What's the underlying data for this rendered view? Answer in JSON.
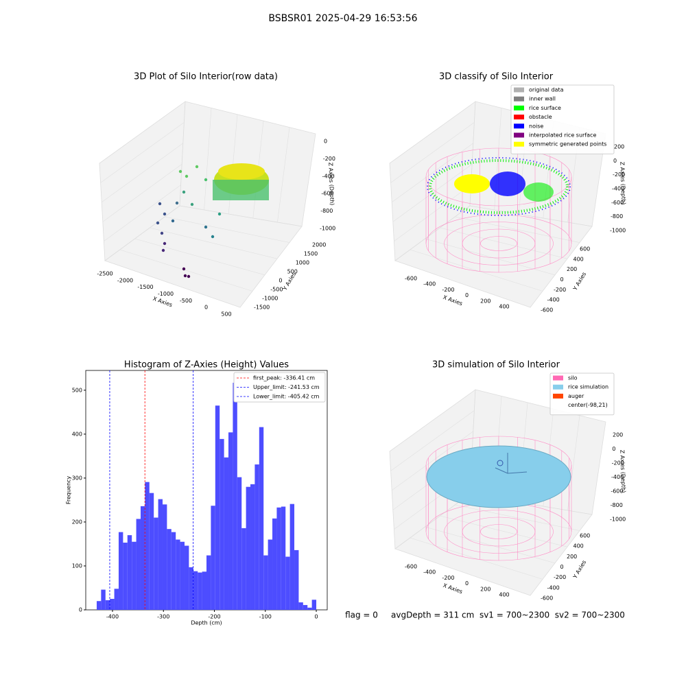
{
  "title": "BSBSR01 2025-04-29 16:53:56",
  "chart_data": [
    {
      "type": "scatter3d",
      "title": "3D Plot of Silo Interior(row data)",
      "xlabel": "X Axies",
      "ylabel": "Y Axies",
      "zlabel": "Z Axies (Depth)",
      "xticks": [
        -2500,
        -2000,
        -1500,
        -1000,
        -500,
        0,
        500
      ],
      "yticks": [
        -1500,
        -1000,
        -500,
        0,
        500,
        1000,
        1500,
        2000
      ],
      "zticks": [
        -1000,
        -800,
        -600,
        -400,
        -200,
        0
      ]
    },
    {
      "type": "classify3d",
      "title": "3D classify of Silo Interior",
      "xlabel": "X Axies",
      "ylabel": "Y Axies",
      "zlabel": "Z Axies (Depth)",
      "xticks": [
        -600,
        -400,
        -200,
        0,
        200,
        400
      ],
      "yticks": [
        -600,
        -400,
        -200,
        0,
        200,
        400,
        600
      ],
      "zticks": [
        -1000,
        -800,
        -600,
        -400,
        -200,
        0,
        200
      ],
      "legend": [
        {
          "name": "original data",
          "color": "#b0b0b0"
        },
        {
          "name": "inner wall",
          "color": "#808080"
        },
        {
          "name": "rice surface",
          "color": "#00ff00"
        },
        {
          "name": "obstacle",
          "color": "#ff0000"
        },
        {
          "name": "noise",
          "color": "#0000ff"
        },
        {
          "name": "interpolated rice surface",
          "color": "#800080"
        },
        {
          "name": "symmetric generated points",
          "color": "#ffff00"
        }
      ]
    },
    {
      "type": "histogram",
      "title": "Histogram of Z-Axies (Height) Values",
      "xlabel": "Depth (cm)",
      "ylabel": "Frequency",
      "color": "#4d4dff",
      "bins": [
        -431.0,
        -422.38,
        -413.76,
        -405.14,
        -396.52,
        -387.9,
        -379.28,
        -370.66,
        -362.04,
        -353.42,
        -344.8,
        -336.18,
        -327.56,
        -318.94,
        -310.32,
        -301.7,
        -293.08,
        -284.46,
        -275.84,
        -267.22,
        -258.6,
        -249.98,
        -241.36,
        -232.74,
        -224.12,
        -215.5,
        -206.88,
        -198.26,
        -189.64,
        -181.02,
        -172.4,
        -163.78,
        -155.16,
        -146.54,
        -137.92,
        -129.3,
        -120.68,
        -112.06,
        -103.44,
        -94.82,
        -86.2,
        -77.58,
        -68.96,
        -60.34,
        -51.72,
        -43.1,
        -34.48,
        -25.86,
        -17.24,
        -8.62,
        0
      ],
      "counts": [
        20,
        46,
        22,
        25,
        48,
        177,
        153,
        170,
        155,
        207,
        236,
        291,
        266,
        210,
        252,
        240,
        184,
        177,
        160,
        155,
        146,
        97,
        88,
        85,
        87,
        124,
        237,
        465,
        389,
        347,
        404,
        517,
        302,
        186,
        280,
        286,
        331,
        416,
        124,
        160,
        208,
        233,
        235,
        121,
        241,
        136,
        17,
        11,
        5,
        23
      ],
      "xlim": [
        -452.5,
        21.5
      ],
      "ylim": [
        0,
        545
      ],
      "xticks": [
        -400,
        -300,
        -200,
        -100,
        0
      ],
      "yticks": [
        0,
        100,
        200,
        300,
        400,
        500
      ],
      "lines": [
        {
          "label": "first_peak: -336.41 cm",
          "value": -336.41,
          "color": "#ff0000"
        },
        {
          "label": "Upper_limit: -241.53 cm",
          "value": -241.53,
          "color": "#0000ff"
        },
        {
          "label": "Lower_limit: -405.42 cm",
          "value": -405.42,
          "color": "#0000ff"
        }
      ]
    },
    {
      "type": "surface3d",
      "title": "3D simulation of Silo Interior",
      "xlabel": "X Axies",
      "ylabel": "Y Axies",
      "zlabel": "Z Axies (Depth)",
      "xticks": [
        -600,
        -400,
        -200,
        0,
        200,
        400
      ],
      "yticks": [
        -600,
        -400,
        -200,
        0,
        200,
        400,
        600
      ],
      "zticks": [
        -1000,
        -800,
        -600,
        -400,
        -200,
        0,
        200
      ],
      "legend": [
        {
          "name": "silo",
          "color": "#ff69b4"
        },
        {
          "name": "rice simulation",
          "color": "#87ceeb"
        },
        {
          "name": "auger",
          "color": "#ff4500"
        },
        {
          "name": "center(-98,21)",
          "color": "#ffffff"
        }
      ]
    }
  ],
  "status": "flag = 0     avgDepth = 311 cm  sv1 = 700~2300  sv2 = 700~2300"
}
